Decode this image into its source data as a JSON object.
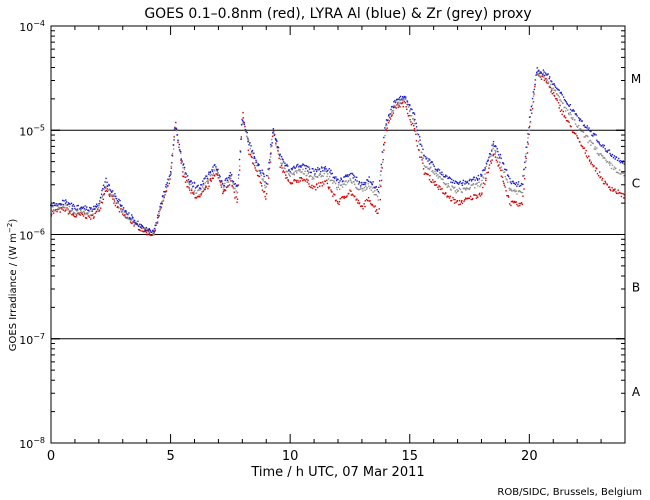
{
  "colors": {
    "red_series": "#d40000",
    "blue_series": "#1a1acc",
    "grey_series": "#8c8c8c",
    "axis": "#000000"
  },
  "credit": "ROB/SIDC, Brussels, Belgium",
  "chart_data": {
    "type": "scatter",
    "title": "GOES 0.1–0.8nm (red), LYRA Al (blue) & Zr (grey) proxy",
    "xlabel": "Time / h UTC, 07 Mar 2011",
    "ylabel_base": "GOES Irradiance / (W m",
    "ylabel_exp": "−2",
    "ylabel_close": ")",
    "x_range": [
      0,
      24
    ],
    "y_range_log10": [
      -8,
      -4
    ],
    "x_ticks": [
      {
        "value": 0,
        "label": "0"
      },
      {
        "value": 5,
        "label": "5"
      },
      {
        "value": 10,
        "label": "10"
      },
      {
        "value": 15,
        "label": "15"
      },
      {
        "value": 20,
        "label": "20"
      }
    ],
    "y_ticks": [
      {
        "exp": -4,
        "base": "10",
        "sup": "−4"
      },
      {
        "exp": -5,
        "base": "10",
        "sup": "−5"
      },
      {
        "exp": -6,
        "base": "10",
        "sup": "−6"
      },
      {
        "exp": -7,
        "base": "10",
        "sup": "−7"
      },
      {
        "exp": -8,
        "base": "10",
        "sup": "−8"
      }
    ],
    "class_lines_log10": [
      -5,
      -6,
      -7
    ],
    "flare_classes": [
      {
        "label": "M",
        "log10_center": -4.5
      },
      {
        "label": "C",
        "log10_center": -5.5
      },
      {
        "label": "B",
        "log10_center": -6.5
      },
      {
        "label": "A",
        "log10_center": -7.5
      }
    ],
    "series": [
      {
        "name": "GOES 0.1-0.8nm",
        "color": "red",
        "points": [
          [
            0.0,
            1.6e-06
          ],
          [
            0.3,
            1.7e-06
          ],
          [
            0.6,
            1.75e-06
          ],
          [
            1.0,
            1.5e-06
          ],
          [
            1.3,
            1.55e-06
          ],
          [
            1.7,
            1.45e-06
          ],
          [
            2.0,
            1.7e-06
          ],
          [
            2.3,
            2.8e-06
          ],
          [
            2.6,
            2.1e-06
          ],
          [
            3.0,
            1.55e-06
          ],
          [
            3.5,
            1.25e-06
          ],
          [
            4.0,
            1.05e-06
          ],
          [
            4.3,
            1e-06
          ],
          [
            4.6,
            1.8e-06
          ],
          [
            5.0,
            3.5e-06
          ],
          [
            5.2,
            1.2e-05
          ],
          [
            5.5,
            4e-06
          ],
          [
            5.8,
            2.6e-06
          ],
          [
            6.2,
            2.2e-06
          ],
          [
            6.6,
            3e-06
          ],
          [
            6.9,
            4e-06
          ],
          [
            7.2,
            2.5e-06
          ],
          [
            7.5,
            3.3e-06
          ],
          [
            7.8,
            2e-06
          ],
          [
            8.0,
            1.5e-05
          ],
          [
            8.3,
            6e-06
          ],
          [
            8.7,
            3.5e-06
          ],
          [
            9.0,
            2.2e-06
          ],
          [
            9.3,
            1e-05
          ],
          [
            9.6,
            4.5e-06
          ],
          [
            10.0,
            3e-06
          ],
          [
            10.5,
            3.5e-06
          ],
          [
            11.0,
            2.8e-06
          ],
          [
            11.5,
            3.2e-06
          ],
          [
            12.0,
            2e-06
          ],
          [
            12.5,
            2.6e-06
          ],
          [
            13.0,
            1.8e-06
          ],
          [
            13.3,
            2.2e-06
          ],
          [
            13.7,
            1.6e-06
          ],
          [
            14.0,
            1e-05
          ],
          [
            14.4,
            1.7e-05
          ],
          [
            14.8,
            1.8e-05
          ],
          [
            15.2,
            1e-05
          ],
          [
            15.6,
            4e-06
          ],
          [
            16.0,
            3.2e-06
          ],
          [
            16.5,
            2.4e-06
          ],
          [
            17.0,
            2e-06
          ],
          [
            17.5,
            2.2e-06
          ],
          [
            18.0,
            2.5e-06
          ],
          [
            18.5,
            6e-06
          ],
          [
            18.8,
            4e-06
          ],
          [
            19.2,
            2e-06
          ],
          [
            19.7,
            1.9e-06
          ],
          [
            20.0,
            1e-05
          ],
          [
            20.3,
            3.5e-05
          ],
          [
            20.7,
            3e-05
          ],
          [
            21.2,
            1.8e-05
          ],
          [
            21.7,
            1.1e-05
          ],
          [
            22.2,
            7e-06
          ],
          [
            22.7,
            4.5e-06
          ],
          [
            23.2,
            3e-06
          ],
          [
            24.0,
            2.3e-06
          ]
        ]
      },
      {
        "name": "LYRA Al proxy",
        "color": "blue",
        "points": [
          [
            0.0,
            1.9e-06
          ],
          [
            0.3,
            1.95e-06
          ],
          [
            0.6,
            2.05e-06
          ],
          [
            1.0,
            1.8e-06
          ],
          [
            1.3,
            1.85e-06
          ],
          [
            1.7,
            1.75e-06
          ],
          [
            2.0,
            2e-06
          ],
          [
            2.3,
            3.3e-06
          ],
          [
            2.6,
            2.5e-06
          ],
          [
            3.0,
            1.8e-06
          ],
          [
            3.5,
            1.35e-06
          ],
          [
            4.0,
            1.1e-06
          ],
          [
            4.3,
            1.05e-06
          ],
          [
            4.6,
            2e-06
          ],
          [
            5.0,
            4e-06
          ],
          [
            5.2,
            1.1e-05
          ],
          [
            5.5,
            5e-06
          ],
          [
            5.8,
            3.2e-06
          ],
          [
            6.2,
            2.8e-06
          ],
          [
            6.6,
            3.8e-06
          ],
          [
            6.9,
            4.6e-06
          ],
          [
            7.2,
            3e-06
          ],
          [
            7.5,
            3.8e-06
          ],
          [
            7.8,
            2.8e-06
          ],
          [
            8.0,
            1.3e-05
          ],
          [
            8.3,
            7.5e-06
          ],
          [
            8.7,
            4.5e-06
          ],
          [
            9.0,
            3.2e-06
          ],
          [
            9.3,
            1e-05
          ],
          [
            9.6,
            5.5e-06
          ],
          [
            10.0,
            4.2e-06
          ],
          [
            10.5,
            4.6e-06
          ],
          [
            11.0,
            4e-06
          ],
          [
            11.5,
            4.4e-06
          ],
          [
            12.0,
            3.2e-06
          ],
          [
            12.5,
            3.8e-06
          ],
          [
            13.0,
            3e-06
          ],
          [
            13.3,
            3.4e-06
          ],
          [
            13.7,
            2.6e-06
          ],
          [
            14.0,
            1.2e-05
          ],
          [
            14.4,
            1.9e-05
          ],
          [
            14.8,
            2.1e-05
          ],
          [
            15.2,
            1.4e-05
          ],
          [
            15.6,
            5.5e-06
          ],
          [
            16.0,
            4.6e-06
          ],
          [
            16.5,
            3.6e-06
          ],
          [
            17.0,
            3.1e-06
          ],
          [
            17.5,
            3.2e-06
          ],
          [
            18.0,
            3.6e-06
          ],
          [
            18.5,
            7.5e-06
          ],
          [
            18.8,
            5.5e-06
          ],
          [
            19.2,
            3.2e-06
          ],
          [
            19.7,
            3e-06
          ],
          [
            20.0,
            1.2e-05
          ],
          [
            20.3,
            3.8e-05
          ],
          [
            20.7,
            3.5e-05
          ],
          [
            21.2,
            2.4e-05
          ],
          [
            21.7,
            1.7e-05
          ],
          [
            22.2,
            1.2e-05
          ],
          [
            22.7,
            9e-06
          ],
          [
            23.2,
            6.5e-06
          ],
          [
            24.0,
            4.8e-06
          ]
        ]
      },
      {
        "name": "LYRA Zr proxy",
        "color": "grey",
        "points": [
          [
            0.0,
            1.75e-06
          ],
          [
            0.3,
            1.8e-06
          ],
          [
            0.6,
            1.9e-06
          ],
          [
            1.0,
            1.65e-06
          ],
          [
            1.3,
            1.7e-06
          ],
          [
            1.7,
            1.6e-06
          ],
          [
            2.0,
            1.85e-06
          ],
          [
            2.3,
            3e-06
          ],
          [
            2.6,
            2.3e-06
          ],
          [
            3.0,
            1.65e-06
          ],
          [
            3.5,
            1.3e-06
          ],
          [
            4.0,
            1.08e-06
          ],
          [
            4.3,
            1.02e-06
          ],
          [
            4.6,
            1.9e-06
          ],
          [
            5.0,
            3.8e-06
          ],
          [
            5.2,
            1.1e-05
          ],
          [
            5.5,
            4.6e-06
          ],
          [
            5.8,
            2.9e-06
          ],
          [
            6.2,
            2.5e-06
          ],
          [
            6.6,
            3.4e-06
          ],
          [
            6.9,
            4.3e-06
          ],
          [
            7.2,
            2.8e-06
          ],
          [
            7.5,
            3.5e-06
          ],
          [
            7.8,
            2.5e-06
          ],
          [
            8.0,
            1.3e-05
          ],
          [
            8.3,
            7e-06
          ],
          [
            8.7,
            4e-06
          ],
          [
            9.0,
            2.8e-06
          ],
          [
            9.3,
            1e-05
          ],
          [
            9.6,
            5e-06
          ],
          [
            10.0,
            3.7e-06
          ],
          [
            10.5,
            4.1e-06
          ],
          [
            11.0,
            3.5e-06
          ],
          [
            11.5,
            3.9e-06
          ],
          [
            12.0,
            2.8e-06
          ],
          [
            12.5,
            3.3e-06
          ],
          [
            13.0,
            2.6e-06
          ],
          [
            13.3,
            3e-06
          ],
          [
            13.7,
            2.2e-06
          ],
          [
            14.0,
            1.1e-05
          ],
          [
            14.4,
            1.8e-05
          ],
          [
            14.8,
            2e-05
          ],
          [
            15.2,
            1.2e-05
          ],
          [
            15.6,
            4.8e-06
          ],
          [
            16.0,
            4e-06
          ],
          [
            16.5,
            3e-06
          ],
          [
            17.0,
            2.6e-06
          ],
          [
            17.5,
            2.8e-06
          ],
          [
            18.0,
            3.1e-06
          ],
          [
            18.5,
            7e-06
          ],
          [
            18.8,
            4.8e-06
          ],
          [
            19.2,
            2.7e-06
          ],
          [
            19.7,
            2.5e-06
          ],
          [
            20.0,
            1.1e-05
          ],
          [
            20.3,
            3.6e-05
          ],
          [
            20.7,
            3.2e-05
          ],
          [
            21.2,
            2.1e-05
          ],
          [
            21.7,
            1.4e-05
          ],
          [
            22.2,
            9.5e-06
          ],
          [
            22.7,
            7e-06
          ],
          [
            23.2,
            5e-06
          ],
          [
            24.0,
            3.6e-06
          ]
        ]
      }
    ]
  }
}
